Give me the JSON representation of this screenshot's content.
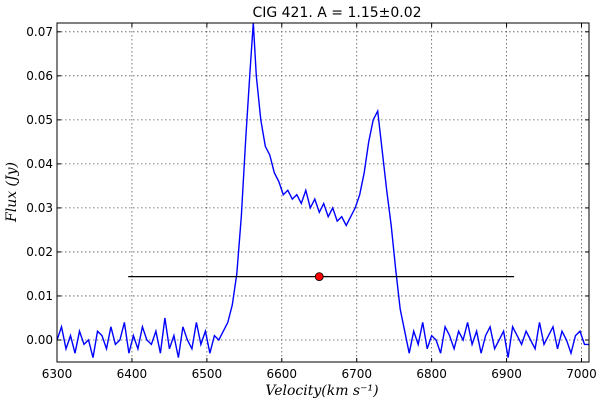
{
  "chart_data": {
    "type": "line",
    "title": "CIG 421.  A = 1.15±0.02",
    "xlabel": "Velocity(km s⁻¹)",
    "ylabel": "Flux (Jy)",
    "xlim": [
      6300,
      7010
    ],
    "ylim": [
      -0.005,
      0.072
    ],
    "grid": true,
    "x_ticks": [
      6300,
      6400,
      6500,
      6600,
      6700,
      6800,
      6900,
      7000
    ],
    "y_ticks": [
      0.0,
      0.01,
      0.02,
      0.03,
      0.04,
      0.05,
      0.06,
      0.07
    ],
    "x_tick_labels": [
      "6300",
      "6400",
      "6500",
      "6600",
      "6700",
      "6800",
      "6900",
      "7000"
    ],
    "y_tick_labels": [
      "0.00",
      "0.01",
      "0.02",
      "0.03",
      "0.04",
      "0.05",
      "0.06",
      "0.07"
    ],
    "series": [
      {
        "color": "#0000ff",
        "x": [
          6300,
          6306,
          6312,
          6318,
          6324,
          6330,
          6336,
          6342,
          6348,
          6354,
          6360,
          6366,
          6372,
          6378,
          6384,
          6390,
          6396,
          6402,
          6408,
          6414,
          6420,
          6426,
          6432,
          6438,
          6444,
          6450,
          6456,
          6462,
          6468,
          6474,
          6480,
          6486,
          6492,
          6498,
          6504,
          6510,
          6516,
          6522,
          6528,
          6534,
          6540,
          6546,
          6552,
          6558,
          6562,
          6566,
          6572,
          6578,
          6584,
          6590,
          6596,
          6602,
          6608,
          6614,
          6620,
          6626,
          6632,
          6638,
          6644,
          6650,
          6656,
          6662,
          6668,
          6674,
          6680,
          6686,
          6692,
          6698,
          6704,
          6710,
          6716,
          6722,
          6728,
          6732,
          6736,
          6740,
          6746,
          6752,
          6758,
          6764,
          6770,
          6776,
          6782,
          6788,
          6794,
          6800,
          6806,
          6812,
          6818,
          6824,
          6830,
          6836,
          6842,
          6848,
          6854,
          6860,
          6866,
          6872,
          6878,
          6884,
          6890,
          6896,
          6902,
          6908,
          6914,
          6920,
          6926,
          6932,
          6938,
          6944,
          6950,
          6956,
          6962,
          6968,
          6974,
          6980,
          6986,
          6992,
          6998,
          7004,
          7010
        ],
        "y": [
          0.0,
          0.003,
          -0.002,
          0.001,
          -0.003,
          0.002,
          -0.001,
          0.0,
          -0.004,
          0.002,
          0.001,
          -0.002,
          0.003,
          -0.001,
          0.0,
          0.004,
          -0.003,
          0.001,
          -0.002,
          0.003,
          0.0,
          -0.001,
          0.002,
          -0.003,
          0.005,
          -0.002,
          0.001,
          -0.004,
          0.003,
          0.0,
          -0.002,
          0.004,
          -0.001,
          0.002,
          -0.003,
          0.001,
          0.0,
          0.002,
          0.004,
          0.008,
          0.015,
          0.028,
          0.046,
          0.062,
          0.072,
          0.06,
          0.05,
          0.044,
          0.042,
          0.038,
          0.036,
          0.033,
          0.034,
          0.032,
          0.033,
          0.031,
          0.034,
          0.03,
          0.032,
          0.029,
          0.031,
          0.028,
          0.03,
          0.027,
          0.028,
          0.026,
          0.028,
          0.03,
          0.033,
          0.038,
          0.045,
          0.05,
          0.052,
          0.046,
          0.04,
          0.034,
          0.026,
          0.016,
          0.007,
          0.002,
          -0.003,
          0.002,
          -0.001,
          0.004,
          -0.002,
          0.001,
          0.0,
          -0.003,
          0.003,
          0.001,
          -0.002,
          0.002,
          0.0,
          0.004,
          -0.001,
          0.002,
          -0.003,
          0.001,
          0.003,
          -0.002,
          0.0,
          0.002,
          -0.004,
          0.003,
          0.001,
          -0.001,
          0.002,
          0.0,
          -0.002,
          0.004,
          -0.001,
          0.001,
          0.003,
          -0.002,
          0.002,
          0.0,
          -0.003,
          0.001,
          0.002,
          -0.001,
          -0.001
        ]
      },
      {
        "color": "#000000",
        "x": [
          6395,
          6910
        ],
        "y": [
          0.0144,
          0.0144
        ]
      }
    ],
    "marker": {
      "x": 6650,
      "y": 0.0144,
      "color": "#ff0000"
    }
  }
}
